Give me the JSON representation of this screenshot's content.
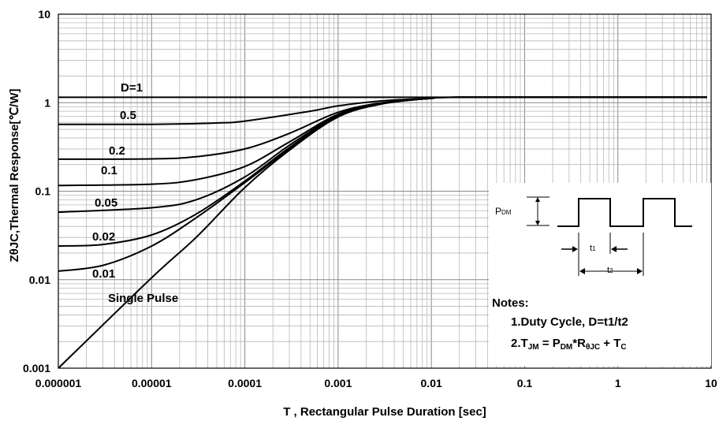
{
  "chart_data": {
    "type": "line",
    "xlabel": "T , Rectangular Pulse Duration [sec]",
    "ylabel": "ZθJC,Thermal Response[℃/W]",
    "x_scale": "log",
    "y_scale": "log",
    "xlim": [
      1e-06,
      10
    ],
    "ylim": [
      0.001,
      10
    ],
    "grid": true,
    "x_ticks": [
      "0.000001",
      "0.00001",
      "0.0001",
      "0.001",
      "0.01",
      "0.1",
      "1",
      "10"
    ],
    "y_ticks": [
      "0.001",
      "0.01",
      "0.1",
      "1",
      "10"
    ],
    "series": [
      {
        "name": "D=1",
        "values": [
          [
            1e-06,
            1.15
          ],
          [
            1e-05,
            1.15
          ],
          [
            0.0001,
            1.15
          ],
          [
            0.001,
            1.15
          ],
          [
            0.01,
            1.15
          ],
          [
            0.1,
            1.15
          ],
          [
            1,
            1.15
          ],
          [
            9,
            1.15
          ]
        ]
      },
      {
        "name": "0.5",
        "values": [
          [
            1e-06,
            0.57
          ],
          [
            1e-05,
            0.57
          ],
          [
            5e-05,
            0.59
          ],
          [
            0.0001,
            0.62
          ],
          [
            0.0005,
            0.8
          ],
          [
            0.001,
            0.92
          ],
          [
            0.003,
            1.05
          ],
          [
            0.01,
            1.12
          ],
          [
            0.02,
            1.15
          ],
          [
            9,
            1.15
          ]
        ]
      },
      {
        "name": "0.2",
        "values": [
          [
            1e-06,
            0.23
          ],
          [
            1e-05,
            0.232
          ],
          [
            3e-05,
            0.245
          ],
          [
            0.0001,
            0.3
          ],
          [
            0.0003,
            0.45
          ],
          [
            0.001,
            0.78
          ],
          [
            0.003,
            1.0
          ],
          [
            0.01,
            1.12
          ],
          [
            0.02,
            1.15
          ],
          [
            9,
            1.15
          ]
        ]
      },
      {
        "name": "0.1",
        "values": [
          [
            1e-06,
            0.116
          ],
          [
            1e-05,
            0.12
          ],
          [
            3e-05,
            0.135
          ],
          [
            0.0001,
            0.19
          ],
          [
            0.0003,
            0.36
          ],
          [
            0.001,
            0.74
          ],
          [
            0.003,
            0.99
          ],
          [
            0.01,
            1.12
          ],
          [
            0.02,
            1.15
          ],
          [
            9,
            1.15
          ]
        ]
      },
      {
        "name": "0.05",
        "values": [
          [
            1e-06,
            0.058
          ],
          [
            1e-05,
            0.065
          ],
          [
            3e-05,
            0.08
          ],
          [
            0.0001,
            0.145
          ],
          [
            0.0003,
            0.33
          ],
          [
            0.001,
            0.72
          ],
          [
            0.003,
            0.98
          ],
          [
            0.01,
            1.12
          ],
          [
            0.02,
            1.15
          ],
          [
            9,
            1.15
          ]
        ]
      },
      {
        "name": "0.02",
        "values": [
          [
            1e-06,
            0.024
          ],
          [
            3e-06,
            0.025
          ],
          [
            1e-05,
            0.032
          ],
          [
            3e-05,
            0.055
          ],
          [
            0.0001,
            0.13
          ],
          [
            0.0003,
            0.31
          ],
          [
            0.001,
            0.71
          ],
          [
            0.003,
            0.98
          ],
          [
            0.01,
            1.12
          ],
          [
            0.02,
            1.15
          ],
          [
            9,
            1.15
          ]
        ]
      },
      {
        "name": "0.01",
        "values": [
          [
            1e-06,
            0.0125
          ],
          [
            3e-06,
            0.0145
          ],
          [
            1e-05,
            0.024
          ],
          [
            3e-05,
            0.05
          ],
          [
            0.0001,
            0.125
          ],
          [
            0.0003,
            0.3
          ],
          [
            0.001,
            0.7
          ],
          [
            0.003,
            0.98
          ],
          [
            0.01,
            1.12
          ],
          [
            0.02,
            1.15
          ],
          [
            9,
            1.15
          ]
        ]
      },
      {
        "name": "Single Pulse",
        "values": [
          [
            1e-06,
            0.001
          ],
          [
            1e-05,
            0.0105
          ],
          [
            3e-05,
            0.03
          ],
          [
            0.0001,
            0.11
          ],
          [
            0.0003,
            0.29
          ],
          [
            0.001,
            0.69
          ],
          [
            0.003,
            0.97
          ],
          [
            0.01,
            1.12
          ],
          [
            0.02,
            1.15
          ],
          [
            9,
            1.15
          ]
        ]
      }
    ]
  },
  "inset": {
    "pdm_label": "P",
    "pdm_sub": "DM",
    "t1_label": "t",
    "t1_sub": "1",
    "t2_label": "t",
    "t2_sub": "2",
    "notes_title": "Notes:",
    "note1": "1.Duty  Cycle, D=t1/t2",
    "note2_a": "2.T",
    "note2_a_sub": "JM",
    "note2_b": " = P",
    "note2_b_sub": "DM",
    "note2_c": "*R",
    "note2_c_sub": "θJC",
    "note2_d": " + T",
    "note2_d_sub": "C"
  }
}
